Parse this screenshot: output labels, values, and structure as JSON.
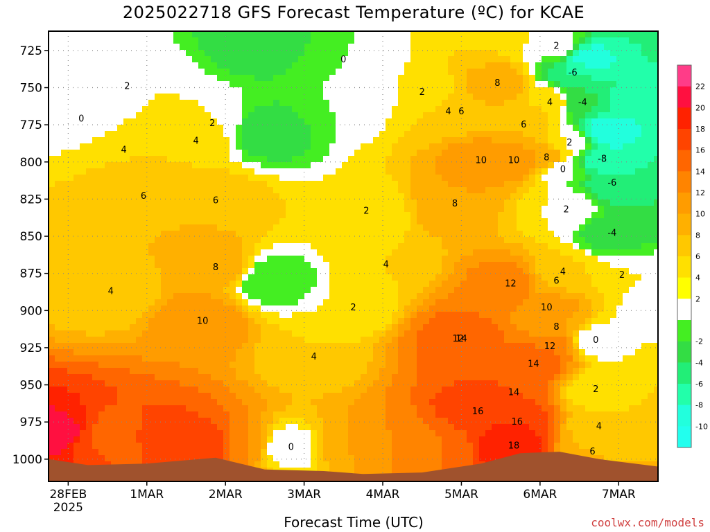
{
  "title": "2025022718 GFS Forecast Temperature (ºC) for KCAE",
  "xlabel": "Forecast Time (UTC)",
  "credit": "coolwx.com/models",
  "chart_data": {
    "type": "heatmap",
    "y_axis": {
      "quantity": "pressure (hPa)",
      "range": [
        1015,
        712
      ],
      "ticks": [
        725,
        750,
        775,
        800,
        825,
        850,
        875,
        900,
        925,
        950,
        975,
        1000
      ]
    },
    "x_axis": {
      "range": [
        "2025-02-27T18:00Z",
        "2025-03-07T12:00Z"
      ],
      "ticks": [
        {
          "t": "2025-02-28T00:00Z",
          "label": "28FEB",
          "sublabel": "2025"
        },
        {
          "t": "2025-03-01T00:00Z",
          "label": "1MAR"
        },
        {
          "t": "2025-03-02T00:00Z",
          "label": "2MAR"
        },
        {
          "t": "2025-03-03T00:00Z",
          "label": "3MAR"
        },
        {
          "t": "2025-03-04T00:00Z",
          "label": "4MAR"
        },
        {
          "t": "2025-03-05T00:00Z",
          "label": "5MAR"
        },
        {
          "t": "2025-03-06T00:00Z",
          "label": "6MAR"
        },
        {
          "t": "2025-03-07T00:00Z",
          "label": "7MAR"
        }
      ]
    },
    "grid": true,
    "colorbar": {
      "placement": "right",
      "levels": [
        {
          "label": "22",
          "color": "#ff3c88"
        },
        {
          "label": "20",
          "color": "#ff1040"
        },
        {
          "label": "18",
          "color": "#ff2200"
        },
        {
          "label": "16",
          "color": "#ff4400"
        },
        {
          "label": "14",
          "color": "#ff6600"
        },
        {
          "label": "12",
          "color": "#ff8400"
        },
        {
          "label": "10",
          "color": "#ff9c00"
        },
        {
          "label": "8",
          "color": "#ffb000"
        },
        {
          "label": "6",
          "color": "#ffc800"
        },
        {
          "label": "4",
          "color": "#ffe000"
        },
        {
          "label": "2",
          "color": "#ffff00"
        },
        {
          "label": "",
          "color": "#ffffff"
        },
        {
          "label": "-2",
          "color": "#44ee22"
        },
        {
          "label": "-4",
          "color": "#33dd44"
        },
        {
          "label": "-6",
          "color": "#22ee77"
        },
        {
          "label": "-8",
          "color": "#22ffaa"
        },
        {
          "label": "-10",
          "color": "#22ffdd"
        },
        {
          "label": "",
          "color": "#22ffee"
        }
      ]
    },
    "terrain_color": "#a0522d",
    "surface_pressure": [
      {
        "t": "2025-02-27T18:00Z",
        "p": 1000
      },
      {
        "t": "2025-02-28T06:00Z",
        "p": 1004
      },
      {
        "t": "2025-03-01T00:00Z",
        "p": 1003
      },
      {
        "t": "2025-03-01T21:00Z",
        "p": 999
      },
      {
        "t": "2025-03-02T12:00Z",
        "p": 1007
      },
      {
        "t": "2025-03-03T06:00Z",
        "p": 1008
      },
      {
        "t": "2025-03-03T18:00Z",
        "p": 1010
      },
      {
        "t": "2025-03-04T12:00Z",
        "p": 1009
      },
      {
        "t": "2025-03-05T06:00Z",
        "p": 1003
      },
      {
        "t": "2025-03-05T18:00Z",
        "p": 996
      },
      {
        "t": "2025-03-06T06:00Z",
        "p": 995
      },
      {
        "t": "2025-03-06T18:00Z",
        "p": 1000
      },
      {
        "t": "2025-03-07T12:00Z",
        "p": 1005
      }
    ],
    "contour_labels": [
      {
        "t": "2025-02-28T04:00Z",
        "p": 771,
        "value": "0"
      },
      {
        "t": "2025-02-28T18:00Z",
        "p": 749,
        "value": "2"
      },
      {
        "t": "2025-02-28T17:00Z",
        "p": 792,
        "value": "4"
      },
      {
        "t": "2025-02-28T13:00Z",
        "p": 887,
        "value": "4"
      },
      {
        "t": "2025-02-28T23:00Z",
        "p": 823,
        "value": "6"
      },
      {
        "t": "2025-03-01T15:00Z",
        "p": 786,
        "value": "4"
      },
      {
        "t": "2025-03-01T20:00Z",
        "p": 774,
        "value": "2"
      },
      {
        "t": "2025-03-01T21:00Z",
        "p": 826,
        "value": "6"
      },
      {
        "t": "2025-03-01T21:00Z",
        "p": 871,
        "value": "8"
      },
      {
        "t": "2025-03-01T17:00Z",
        "p": 907,
        "value": "10"
      },
      {
        "t": "2025-03-02T20:00Z",
        "p": 992,
        "value": "0"
      },
      {
        "t": "2025-03-03T03:00Z",
        "p": 931,
        "value": "4"
      },
      {
        "t": "2025-03-03T15:00Z",
        "p": 898,
        "value": "2"
      },
      {
        "t": "2025-03-03T12:00Z",
        "p": 731,
        "value": "0"
      },
      {
        "t": "2025-03-03T19:00Z",
        "p": 833,
        "value": "2"
      },
      {
        "t": "2025-03-04T01:00Z",
        "p": 869,
        "value": "4"
      },
      {
        "t": "2025-03-04T12:00Z",
        "p": 753,
        "value": "2"
      },
      {
        "t": "2025-03-04T20:00Z",
        "p": 766,
        "value": "4"
      },
      {
        "t": "2025-03-04T22:00Z",
        "p": 828,
        "value": "8"
      },
      {
        "t": "2025-03-05T00:00Z",
        "p": 766,
        "value": "6"
      },
      {
        "t": "2025-03-05T11:00Z",
        "p": 747,
        "value": "8"
      },
      {
        "t": "2025-03-05T06:00Z",
        "p": 799,
        "value": "10"
      },
      {
        "t": "2025-03-05T16:00Z",
        "p": 799,
        "value": "10"
      },
      {
        "t": "2025-03-05T19:00Z",
        "p": 775,
        "value": "6"
      },
      {
        "t": "2025-03-06T02:00Z",
        "p": 797,
        "value": "8"
      },
      {
        "t": "2025-03-06T03:00Z",
        "p": 760,
        "value": "4"
      },
      {
        "t": "2025-03-06T05:00Z",
        "p": 722,
        "value": "2"
      },
      {
        "t": "2025-03-06T09:00Z",
        "p": 787,
        "value": "2"
      },
      {
        "t": "2025-03-06T10:00Z",
        "p": 740,
        "value": "-6"
      },
      {
        "t": "2025-03-06T13:00Z",
        "p": 760,
        "value": "-4"
      },
      {
        "t": "2025-03-06T19:00Z",
        "p": 798,
        "value": "-8"
      },
      {
        "t": "2025-03-06T22:00Z",
        "p": 814,
        "value": "-6"
      },
      {
        "t": "2025-03-06T22:00Z",
        "p": 848,
        "value": "-4"
      },
      {
        "t": "2025-03-06T07:00Z",
        "p": 805,
        "value": "0"
      },
      {
        "t": "2025-03-06T08:00Z",
        "p": 832,
        "value": "2"
      },
      {
        "t": "2025-03-06T07:00Z",
        "p": 874,
        "value": "4"
      },
      {
        "t": "2025-03-06T05:00Z",
        "p": 880,
        "value": "6"
      },
      {
        "t": "2025-03-06T02:00Z",
        "p": 898,
        "value": "10"
      },
      {
        "t": "2025-03-06T05:00Z",
        "p": 911,
        "value": "8"
      },
      {
        "t": "2025-03-06T03:00Z",
        "p": 924,
        "value": "12"
      },
      {
        "t": "2025-03-05T22:00Z",
        "p": 936,
        "value": "14"
      },
      {
        "t": "2025-03-05T15:00Z",
        "p": 882,
        "value": "12"
      },
      {
        "t": "2025-03-04T23:00Z",
        "p": 919,
        "value": "12"
      },
      {
        "t": "2025-03-05T00:00Z",
        "p": 919,
        "value": "14"
      },
      {
        "t": "2025-03-05T16:00Z",
        "p": 955,
        "value": "14"
      },
      {
        "t": "2025-03-05T05:00Z",
        "p": 968,
        "value": "16"
      },
      {
        "t": "2025-03-05T17:00Z",
        "p": 975,
        "value": "16"
      },
      {
        "t": "2025-03-05T16:00Z",
        "p": 991,
        "value": "18"
      },
      {
        "t": "2025-03-06T17:00Z",
        "p": 920,
        "value": "0"
      },
      {
        "t": "2025-03-06T17:00Z",
        "p": 953,
        "value": "2"
      },
      {
        "t": "2025-03-06T18:00Z",
        "p": 978,
        "value": "4"
      },
      {
        "t": "2025-03-06T16:00Z",
        "p": 995,
        "value": "6"
      },
      {
        "t": "2025-03-07T01:00Z",
        "p": 876,
        "value": "2"
      }
    ]
  }
}
